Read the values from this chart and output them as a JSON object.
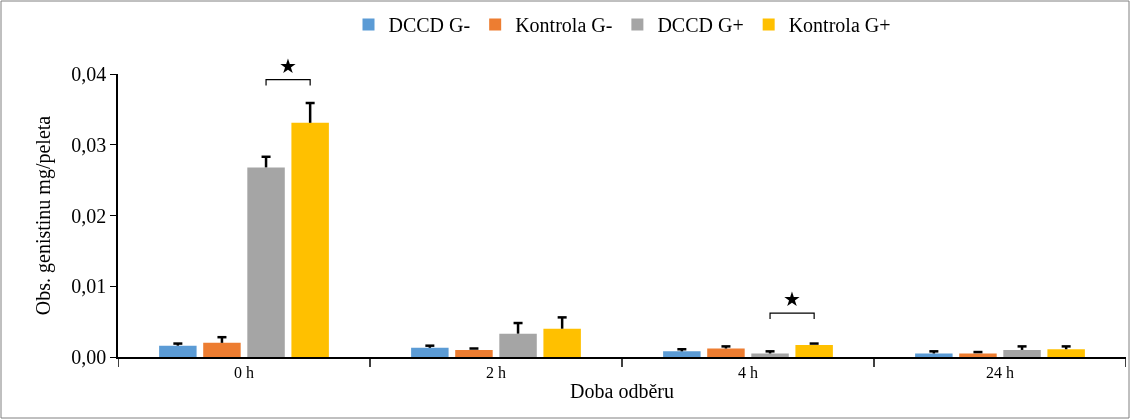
{
  "chart_data": {
    "type": "bar",
    "xlabel": "Doba odběru",
    "ylabel": "Obs. genistinu mg/peleta",
    "categories": [
      "0 h",
      "2 h",
      "4 h",
      "24 h"
    ],
    "series": [
      {
        "name": "DCCD G-",
        "color": "#5b9bd5",
        "values": [
          0.0016,
          0.0013,
          0.0008,
          0.0005
        ],
        "errors": [
          [
            0.0016,
            0.0019
          ],
          [
            0.0013,
            0.0016
          ],
          [
            0.0008,
            0.0011
          ],
          [
            0.0005,
            0.0008
          ]
        ]
      },
      {
        "name": "Kontrola G-",
        "color": "#ed7d31",
        "values": [
          0.002,
          0.001,
          0.0012,
          0.0005
        ],
        "errors": [
          [
            0.002,
            0.0028
          ],
          [
            0.001,
            0.0012
          ],
          [
            0.0012,
            0.0015
          ],
          [
            0.0005,
            0.0007
          ]
        ]
      },
      {
        "name": "DCCD G+",
        "color": "#a5a5a5",
        "values": [
          0.0268,
          0.0033,
          0.0005,
          0.001
        ],
        "errors": [
          [
            0.0268,
            0.0283
          ],
          [
            0.0033,
            0.0048
          ],
          [
            0.0005,
            0.0008
          ],
          [
            0.001,
            0.0015
          ]
        ]
      },
      {
        "name": "Kontrola G+",
        "color": "#ffc000",
        "values": [
          0.0331,
          0.004,
          0.0017,
          0.0011
        ],
        "errors": [
          [
            0.0331,
            0.0359
          ],
          [
            0.004,
            0.0056
          ],
          [
            0.0017,
            0.0019
          ],
          [
            0.0011,
            0.0015
          ]
        ]
      }
    ],
    "ylim": [
      0,
      0.04
    ],
    "yticks": [
      {
        "value": 0,
        "label": "0,00"
      },
      {
        "value": 0.01,
        "label": "0,01"
      },
      {
        "value": 0.02,
        "label": "0,02"
      },
      {
        "value": 0.03,
        "label": "0,03"
      },
      {
        "value": 0.04,
        "label": "0,04"
      }
    ],
    "annotations": [
      "★",
      "★"
    ],
    "legend": "top",
    "grid": false
  }
}
